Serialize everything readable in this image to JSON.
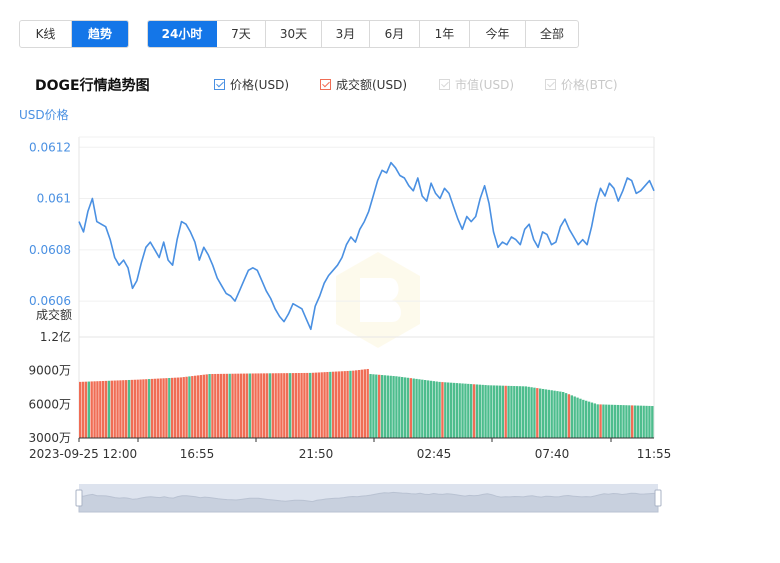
{
  "mode_tabs": [
    {
      "label": "K线",
      "active": false
    },
    {
      "label": "趋势",
      "active": true
    }
  ],
  "range_tabs": [
    {
      "label": "24小时",
      "active": true
    },
    {
      "label": "7天",
      "active": false
    },
    {
      "label": "30天",
      "active": false
    },
    {
      "label": "3月",
      "active": false
    },
    {
      "label": "6月",
      "active": false
    },
    {
      "label": "1年",
      "active": false
    },
    {
      "label": "今年",
      "active": false
    },
    {
      "label": "全部",
      "active": false
    }
  ],
  "chart_title": "DOGE行情趋势图",
  "legend": [
    {
      "label": "价格(USD)",
      "checked": true,
      "enabled": true,
      "color": "#4a90e2"
    },
    {
      "label": "成交额(USD)",
      "checked": true,
      "enabled": true,
      "color": "#f06d55"
    },
    {
      "label": "市值(USD)",
      "checked": true,
      "enabled": false,
      "color": "#cccccc"
    },
    {
      "label": "价格(BTC)",
      "checked": true,
      "enabled": false,
      "color": "#cccccc"
    }
  ],
  "chart_data": {
    "type": "line",
    "price": {
      "ylabel": "USD价格",
      "ylim": [
        0.06046,
        0.06124
      ],
      "yticks": [
        "0.0612",
        "0.061",
        "0.0608",
        "0.0606"
      ],
      "ytick_values": [
        0.0612,
        0.061,
        0.0608,
        0.0606
      ],
      "color": "#4a90e2",
      "values": [
        0.06091,
        0.06087,
        0.06095,
        0.061,
        0.06091,
        0.0609,
        0.06089,
        0.06084,
        0.06077,
        0.06074,
        0.06076,
        0.06073,
        0.06065,
        0.06068,
        0.06075,
        0.06081,
        0.06083,
        0.0608,
        0.06077,
        0.06083,
        0.06076,
        0.06074,
        0.06084,
        0.06091,
        0.0609,
        0.06087,
        0.06083,
        0.06076,
        0.06081,
        0.06078,
        0.06074,
        0.06069,
        0.06066,
        0.06063,
        0.06062,
        0.0606,
        0.06064,
        0.06068,
        0.06072,
        0.06073,
        0.06072,
        0.06068,
        0.06064,
        0.06061,
        0.06057,
        0.06054,
        0.06052,
        0.06055,
        0.06059,
        0.06058,
        0.06057,
        0.06053,
        0.06049,
        0.06058,
        0.06062,
        0.06067,
        0.0607,
        0.06072,
        0.06074,
        0.06077,
        0.06082,
        0.06085,
        0.06083,
        0.06088,
        0.06091,
        0.06095,
        0.06101,
        0.06107,
        0.06111,
        0.0611,
        0.06114,
        0.06112,
        0.06109,
        0.06108,
        0.06105,
        0.06103,
        0.06108,
        0.06101,
        0.06099,
        0.06106,
        0.06102,
        0.061,
        0.06104,
        0.06102,
        0.06097,
        0.06092,
        0.06088,
        0.06093,
        0.06091,
        0.06093,
        0.061,
        0.06105,
        0.06098,
        0.06087,
        0.06081,
        0.06083,
        0.06082,
        0.06085,
        0.06084,
        0.06082,
        0.06088,
        0.0609,
        0.06084,
        0.06081,
        0.06087,
        0.06086,
        0.06082,
        0.06083,
        0.06089,
        0.06092,
        0.06088,
        0.06085,
        0.06082,
        0.06084,
        0.06082,
        0.06089,
        0.06098,
        0.06104,
        0.06101,
        0.06106,
        0.06104,
        0.06099,
        0.06103,
        0.06108,
        0.06107,
        0.06102,
        0.06103,
        0.06105,
        0.06107,
        0.06103
      ]
    },
    "volume": {
      "ylabel": "成交额",
      "ylim": [
        30000000,
        120000000
      ],
      "yticks": [
        "1.2亿",
        "9000万",
        "6000万",
        "3000万"
      ],
      "ytick_values": [
        120000000,
        90000000,
        60000000,
        30000000
      ],
      "up_color": "#4dbd8d",
      "down_color": "#f06d55",
      "levels": [
        [
          0,
          80000000
        ],
        [
          20,
          82000000
        ],
        [
          35,
          84000000
        ],
        [
          45,
          87000000
        ],
        [
          60,
          87500000
        ],
        [
          80,
          88000000
        ],
        [
          95,
          90000000
        ],
        [
          100,
          91500000
        ],
        [
          101,
          87000000
        ],
        [
          110,
          85000000
        ],
        [
          125,
          80000000
        ],
        [
          142,
          77000000
        ],
        [
          155,
          76000000
        ],
        [
          168,
          71000000
        ],
        [
          175,
          64000000
        ],
        [
          180,
          60000000
        ],
        [
          199,
          58500000
        ]
      ],
      "red_until_index": 101
    },
    "xticks": [
      "2023-09-25 12:00",
      "16:55",
      "21:50",
      "02:45",
      "07:40",
      "11:55"
    ]
  }
}
